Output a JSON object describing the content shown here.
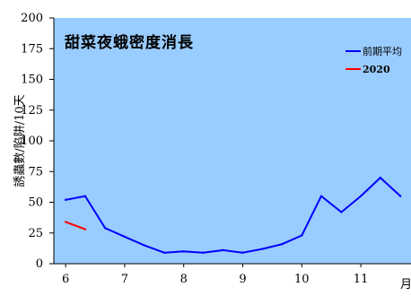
{
  "chart_data": {
    "type": "line",
    "title": "甜菜夜蛾密度消長",
    "ylabel": "誘蟲數/陷阱/10天",
    "xlabel": "月",
    "x_tick_labels": [
      "6",
      "7",
      "8",
      "9",
      "10",
      "11"
    ],
    "ylim": [
      0,
      200
    ],
    "y_ticks": [
      0,
      25,
      50,
      75,
      100,
      125,
      150,
      175,
      200
    ],
    "grid": false,
    "legend_position": "top-right",
    "plot_background": "#99ccff",
    "series": [
      {
        "name": "前期平均",
        "color": "#0000ff",
        "x": [
          6.0,
          6.33,
          6.67,
          7.0,
          7.33,
          7.67,
          8.0,
          8.33,
          8.67,
          9.0,
          9.33,
          9.67,
          10.0,
          10.33,
          10.67,
          11.0,
          11.33,
          11.67
        ],
        "y": [
          52,
          55,
          29,
          22,
          15,
          9,
          10,
          9,
          11,
          9,
          12,
          16,
          23,
          55,
          42,
          55,
          70,
          55
        ]
      },
      {
        "name": "2020",
        "color": "#ff0000",
        "x": [
          6.0,
          6.33
        ],
        "y": [
          34,
          28
        ]
      }
    ]
  }
}
